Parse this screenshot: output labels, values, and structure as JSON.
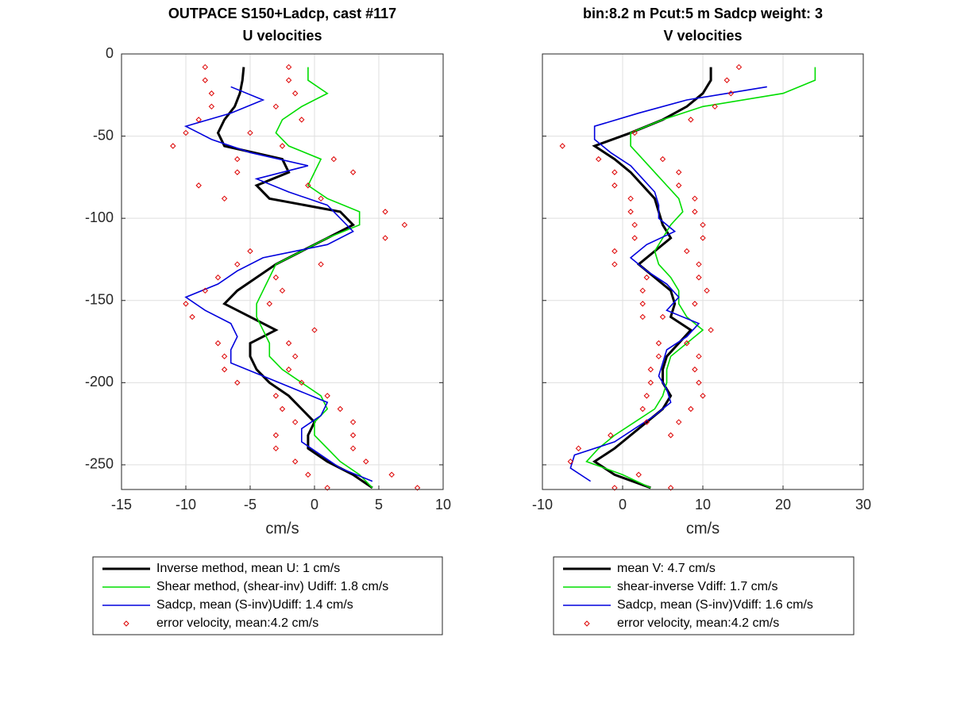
{
  "chart_data": [
    {
      "type": "line",
      "title": [
        "OUTPACE S150+Ladcp, cast #117",
        "U velocities"
      ],
      "xlabel": "cm/s",
      "xlim": [
        -15,
        10
      ],
      "xticks": [
        -15,
        -10,
        -5,
        0,
        5,
        10
      ],
      "ylim": [
        -265,
        0
      ],
      "yticks": [
        -250,
        -200,
        -150,
        -100,
        -50,
        0
      ],
      "show_ytick_labels": true,
      "grid": true,
      "series": [
        {
          "name": "Inverse method, mean U:  1 cm/s",
          "color": "#000000",
          "marker": "line",
          "depth": [
            -8,
            -16,
            -24,
            -32,
            -40,
            -48,
            -56,
            -64,
            -72,
            -80,
            -88,
            -96,
            -104,
            -112,
            -120,
            -128,
            -136,
            -144,
            -152,
            -160,
            -168,
            -176,
            -184,
            -192,
            -200,
            -208,
            -216,
            -224,
            -232,
            -240,
            -248,
            -256,
            -264
          ],
          "values": [
            -5.5,
            -5.6,
            -5.8,
            -6.2,
            -7,
            -7.5,
            -7,
            -2.5,
            -2,
            -4.5,
            -3.5,
            2,
            3,
            1,
            -1,
            -3,
            -4.5,
            -6,
            -7,
            -5,
            -3,
            -5,
            -5,
            -4.5,
            -3.5,
            -2,
            -1,
            0,
            -0.5,
            -0.5,
            1,
            3,
            4.5
          ]
        },
        {
          "name": "Shear method, (shear-inv)  Udiff:  1.8 cm/s",
          "color": "#00dd00",
          "marker": "line",
          "depth": [
            -8,
            -16,
            -24,
            -32,
            -40,
            -48,
            -56,
            -64,
            -72,
            -80,
            -88,
            -96,
            -104,
            -112,
            -120,
            -128,
            -136,
            -144,
            -152,
            -160,
            -168,
            -176,
            -184,
            -192,
            -200,
            -208,
            -216,
            -224,
            -232,
            -240,
            -248,
            -256,
            -264
          ],
          "values": [
            -0.5,
            -0.5,
            1,
            -1,
            -2.5,
            -3,
            -2,
            0.5,
            0,
            -0.5,
            1,
            3.5,
            3.5,
            1,
            -1,
            -3,
            -3.5,
            -4,
            -4.5,
            -4.5,
            -4,
            -3.5,
            -3.5,
            -2.5,
            -1,
            0.5,
            1,
            0,
            0,
            1,
            2,
            3.5,
            4.5
          ]
        },
        {
          "name": "Sadcp, mean (S-inv)Udiff: 1.4 cm/s",
          "color": "#0000dd",
          "marker": "line",
          "depth": [
            -20,
            -28,
            -36,
            -44,
            -52,
            -60,
            -68,
            -76,
            -84,
            -92,
            -100,
            -108,
            -116,
            -124,
            -132,
            -140,
            -148,
            -156,
            -164,
            -172,
            -180,
            -188,
            -196,
            -204,
            -212,
            -220,
            -228,
            -236,
            -244,
            -252,
            -260
          ],
          "values": [
            -6.5,
            -4,
            -6.5,
            -10,
            -8,
            -5,
            -0.5,
            -4.5,
            -2,
            1,
            2,
            3,
            1,
            -4,
            -6,
            -7.5,
            -10,
            -8.5,
            -6.5,
            -6,
            -6.5,
            -6.5,
            -4,
            -1.5,
            1,
            0.5,
            -1,
            -1,
            0.5,
            2,
            4.5
          ]
        },
        {
          "name": "error velocity, mean:4.2 cm/s",
          "color": "#dd0000",
          "marker": "diamond",
          "depth": [
            -8,
            -8,
            -16,
            -16,
            -24,
            -24,
            -32,
            -32,
            -40,
            -40,
            -48,
            -48,
            -56,
            -56,
            -64,
            -64,
            -72,
            -72,
            -80,
            -80,
            -88,
            -88,
            -96,
            -104,
            -112,
            -120,
            -128,
            -128,
            -136,
            -136,
            -144,
            -144,
            -152,
            -152,
            -160,
            -168,
            -176,
            -176,
            -184,
            -184,
            -192,
            -192,
            -200,
            -200,
            -208,
            -208,
            -216,
            -216,
            -224,
            -224,
            -232,
            -232,
            -240,
            -240,
            -248,
            -248,
            -256,
            -256,
            -264,
            -264
          ],
          "values": [
            -8.5,
            -2,
            -8.5,
            -2,
            -8,
            -1.5,
            -8,
            -3,
            -9,
            -1,
            -10,
            -5,
            -11,
            -2.5,
            -6,
            1.5,
            -6,
            3,
            -9,
            -0.5,
            -7,
            0.5,
            5.5,
            7,
            5.5,
            -5,
            -6,
            0.5,
            -7.5,
            -3,
            -8.5,
            -2.5,
            -10,
            -3.5,
            -9.5,
            0,
            -7.5,
            -2,
            -7,
            -1.5,
            -7,
            -2,
            -6,
            -1,
            1,
            -3,
            2,
            -2.5,
            3,
            -1.5,
            3,
            -3,
            -3,
            3,
            -1.5,
            4,
            -0.5,
            6,
            1,
            8
          ]
        }
      ]
    },
    {
      "type": "line",
      "title": [
        "bin:8.2 m  Pcut:5 m  Sadcp weight: 3",
        "V velocities"
      ],
      "xlabel": "cm/s",
      "xlim": [
        -10,
        30
      ],
      "xticks": [
        -10,
        0,
        10,
        20,
        30
      ],
      "ylim": [
        -265,
        0
      ],
      "yticks": [
        -250,
        -200,
        -150,
        -100,
        -50,
        0
      ],
      "show_ytick_labels": false,
      "grid": true,
      "series": [
        {
          "name": "mean V:  4.7 cm/s",
          "color": "#000000",
          "marker": "line",
          "depth": [
            -8,
            -16,
            -24,
            -32,
            -40,
            -48,
            -56,
            -64,
            -72,
            -80,
            -88,
            -96,
            -104,
            -112,
            -120,
            -128,
            -136,
            -144,
            -152,
            -160,
            -168,
            -176,
            -184,
            -192,
            -200,
            -208,
            -216,
            -224,
            -232,
            -240,
            -248,
            -256,
            -264
          ],
          "values": [
            11,
            11,
            10,
            8,
            5,
            1,
            -3.5,
            -1,
            1,
            2.5,
            4,
            4.5,
            5,
            6,
            4,
            2,
            4,
            6,
            6.5,
            6,
            8.5,
            7,
            5.5,
            5,
            5,
            6,
            5,
            3,
            1,
            -1,
            -3.5,
            -1,
            3.5
          ]
        },
        {
          "name": "shear-inverse Vdiff:  1.7 cm/s",
          "color": "#00dd00",
          "marker": "line",
          "depth": [
            -8,
            -16,
            -24,
            -32,
            -40,
            -48,
            -56,
            -64,
            -72,
            -80,
            -88,
            -96,
            -104,
            -112,
            -120,
            -128,
            -136,
            -144,
            -152,
            -160,
            -168,
            -176,
            -184,
            -192,
            -200,
            -208,
            -216,
            -224,
            -232,
            -240,
            -248,
            -256,
            -264
          ],
          "values": [
            24,
            24,
            20,
            10,
            5,
            1,
            1,
            2.5,
            4,
            5.5,
            7,
            7.5,
            6,
            5,
            4,
            4.5,
            6,
            7,
            7,
            8,
            10,
            8,
            6,
            5.5,
            5.5,
            5,
            4,
            1.5,
            -1,
            -3,
            -4.5,
            0,
            3.5
          ]
        },
        {
          "name": "Sadcp, mean (S-inv)Vdiff: 1.6 cm/s",
          "color": "#0000dd",
          "marker": "line",
          "depth": [
            -20,
            -28,
            -36,
            -44,
            -52,
            -60,
            -68,
            -76,
            -84,
            -92,
            -100,
            -108,
            -116,
            -124,
            -132,
            -140,
            -148,
            -156,
            -164,
            -172,
            -180,
            -188,
            -196,
            -204,
            -212,
            -220,
            -228,
            -236,
            -244,
            -252,
            -260
          ],
          "values": [
            18,
            8,
            2,
            -3.5,
            -3.5,
            -1.5,
            1,
            2.5,
            4,
            4.5,
            4.5,
            6.5,
            3,
            1,
            3,
            5.5,
            7,
            5.5,
            9.5,
            8,
            5.5,
            5,
            4.5,
            5.5,
            6,
            4,
            1.5,
            -1,
            -6,
            -6.5,
            -4
          ]
        },
        {
          "name": "error velocity, mean:4.2 cm/s",
          "color": "#dd0000",
          "marker": "diamond",
          "depth": [
            -8,
            -16,
            -24,
            -32,
            -40,
            -48,
            -56,
            -64,
            -64,
            -72,
            -72,
            -80,
            -80,
            -88,
            -88,
            -96,
            -96,
            -104,
            -104,
            -112,
            -112,
            -120,
            -120,
            -128,
            -128,
            -136,
            -136,
            -144,
            -144,
            -152,
            -152,
            -160,
            -160,
            -168,
            -176,
            -176,
            -184,
            -184,
            -192,
            -192,
            -200,
            -200,
            -208,
            -208,
            -216,
            -216,
            -224,
            -224,
            -232,
            -232,
            -240,
            -248,
            -256,
            -264,
            -264
          ],
          "values": [
            14.5,
            13,
            13.5,
            11.5,
            8.5,
            1.5,
            -7.5,
            -3,
            5,
            -1,
            7,
            -1,
            7,
            1,
            9,
            1,
            9,
            1.5,
            10,
            1.5,
            10,
            -1,
            8,
            -1,
            9.5,
            3,
            9.5,
            2.5,
            10.5,
            2.5,
            9,
            2.5,
            5,
            11,
            4.5,
            8,
            4.5,
            9.5,
            3.5,
            9,
            3.5,
            9.5,
            3,
            10,
            2.5,
            8.5,
            3,
            7,
            -1.5,
            6,
            -5.5,
            -6.5,
            2,
            -1,
            6
          ]
        }
      ]
    }
  ]
}
